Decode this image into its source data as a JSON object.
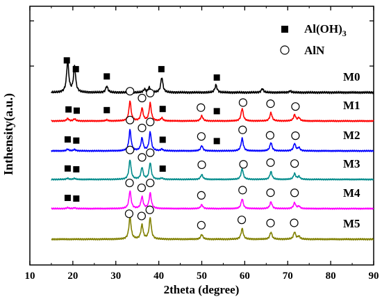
{
  "chart_data": {
    "type": "line",
    "title": "",
    "xlabel": "2theta (degree)",
    "ylabel": "Inthensity(a.u.)",
    "xlim": [
      10,
      90
    ],
    "xticks": [
      "10",
      "20",
      "30",
      "40",
      "50",
      "60",
      "70",
      "80",
      "90"
    ],
    "legend": {
      "placement": "top-right",
      "entries": [
        {
          "marker": "filled-square",
          "label": "Al(OH)",
          "subscript": "3"
        },
        {
          "marker": "open-circle",
          "label": "AlN"
        }
      ]
    },
    "series": [
      {
        "name": "M0",
        "color": "#000000",
        "peaks": [
          [
            18.8,
            1.0
          ],
          [
            20.4,
            0.82
          ],
          [
            27.9,
            0.2
          ],
          [
            36.7,
            0.1
          ],
          [
            37.8,
            0.16
          ],
          [
            40.7,
            0.48
          ],
          [
            53.3,
            0.24
          ],
          [
            64.1,
            0.12
          ],
          [
            70.6,
            0.05
          ]
        ],
        "markers": [
          {
            "shape": "square",
            "x": 18.6
          },
          {
            "shape": "square",
            "x": 20.7
          },
          {
            "shape": "square",
            "x": 27.9
          },
          {
            "shape": "square",
            "x": 40.6
          },
          {
            "shape": "square",
            "x": 53.5
          }
        ]
      },
      {
        "name": "M1",
        "color": "#ff0000",
        "peaks": [
          [
            18.8,
            0.12
          ],
          [
            20.4,
            0.1
          ],
          [
            27.9,
            0.05
          ],
          [
            33.3,
            0.95
          ],
          [
            36.1,
            0.6
          ],
          [
            38.0,
            0.85
          ],
          [
            40.7,
            0.14
          ],
          [
            50.0,
            0.25
          ],
          [
            59.4,
            0.6
          ],
          [
            66.1,
            0.4
          ],
          [
            71.6,
            0.3
          ],
          [
            72.6,
            0.15
          ]
        ],
        "markers": [
          {
            "shape": "square",
            "x": 19.0
          },
          {
            "shape": "square",
            "x": 20.9
          },
          {
            "shape": "square",
            "x": 27.9
          },
          {
            "shape": "circle",
            "x": 33.3
          },
          {
            "shape": "circle",
            "x": 36.1
          },
          {
            "shape": "circle",
            "x": 38.0
          },
          {
            "shape": "square",
            "x": 40.9
          },
          {
            "shape": "circle",
            "x": 49.8
          },
          {
            "shape": "square",
            "x": 53.5
          },
          {
            "shape": "circle",
            "x": 59.6
          },
          {
            "shape": "circle",
            "x": 66.0
          },
          {
            "shape": "circle",
            "x": 71.8
          }
        ]
      },
      {
        "name": "M2",
        "color": "#0000ff",
        "peaks": [
          [
            18.8,
            0.08
          ],
          [
            20.4,
            0.07
          ],
          [
            33.3,
            1.0
          ],
          [
            36.1,
            0.6
          ],
          [
            38.0,
            0.9
          ],
          [
            40.7,
            0.08
          ],
          [
            50.0,
            0.25
          ],
          [
            59.4,
            0.6
          ],
          [
            66.1,
            0.4
          ],
          [
            71.6,
            0.35
          ],
          [
            72.6,
            0.15
          ]
        ],
        "markers": [
          {
            "shape": "square",
            "x": 18.8
          },
          {
            "shape": "square",
            "x": 20.8
          },
          {
            "shape": "circle",
            "x": 33.3
          },
          {
            "shape": "circle",
            "x": 36.1
          },
          {
            "shape": "circle",
            "x": 38.0
          },
          {
            "shape": "square",
            "x": 40.9
          },
          {
            "shape": "circle",
            "x": 49.9
          },
          {
            "shape": "square",
            "x": 53.5
          },
          {
            "shape": "circle",
            "x": 59.5
          },
          {
            "shape": "circle",
            "x": 65.9
          },
          {
            "shape": "circle",
            "x": 71.8
          }
        ]
      },
      {
        "name": "M3",
        "color": "#008b8b",
        "peaks": [
          [
            18.8,
            0.06
          ],
          [
            20.4,
            0.05
          ],
          [
            33.3,
            1.0
          ],
          [
            36.1,
            0.6
          ],
          [
            38.0,
            0.85
          ],
          [
            40.7,
            0.06
          ],
          [
            50.0,
            0.25
          ],
          [
            59.4,
            0.55
          ],
          [
            66.1,
            0.4
          ],
          [
            71.6,
            0.3
          ],
          [
            72.6,
            0.15
          ]
        ],
        "markers": [
          {
            "shape": "square",
            "x": 18.8
          },
          {
            "shape": "square",
            "x": 20.8
          },
          {
            "shape": "circle",
            "x": 33.3
          },
          {
            "shape": "circle",
            "x": 36.1
          },
          {
            "shape": "circle",
            "x": 38.0
          },
          {
            "shape": "square",
            "x": 40.9
          },
          {
            "shape": "circle",
            "x": 50.0
          },
          {
            "shape": "circle",
            "x": 59.7
          },
          {
            "shape": "circle",
            "x": 66.0
          },
          {
            "shape": "circle",
            "x": 71.6
          }
        ]
      },
      {
        "name": "M4",
        "color": "#ff00ff",
        "peaks": [
          [
            18.8,
            0.05
          ],
          [
            20.4,
            0.04
          ],
          [
            33.3,
            0.9
          ],
          [
            36.1,
            0.6
          ],
          [
            38.0,
            0.8
          ],
          [
            50.0,
            0.2
          ],
          [
            59.4,
            0.5
          ],
          [
            66.1,
            0.35
          ],
          [
            71.6,
            0.3
          ],
          [
            72.6,
            0.12
          ]
        ],
        "markers": [
          {
            "shape": "square",
            "x": 18.8
          },
          {
            "shape": "square",
            "x": 20.8
          },
          {
            "shape": "circle",
            "x": 33.2
          },
          {
            "shape": "circle",
            "x": 36.0
          },
          {
            "shape": "circle",
            "x": 38.0
          },
          {
            "shape": "circle",
            "x": 49.9
          },
          {
            "shape": "circle",
            "x": 59.5
          },
          {
            "shape": "circle",
            "x": 66.0
          },
          {
            "shape": "circle",
            "x": 71.6
          }
        ]
      },
      {
        "name": "M5",
        "color": "#808000",
        "peaks": [
          [
            33.3,
            0.95
          ],
          [
            36.1,
            0.6
          ],
          [
            38.0,
            0.9
          ],
          [
            50.0,
            0.2
          ],
          [
            59.4,
            0.45
          ],
          [
            66.1,
            0.3
          ],
          [
            71.6,
            0.3
          ],
          [
            72.6,
            0.12
          ]
        ],
        "markers": [
          {
            "shape": "circle",
            "x": 33.1
          },
          {
            "shape": "circle",
            "x": 36.0
          },
          {
            "shape": "circle",
            "x": 37.9
          },
          {
            "shape": "circle",
            "x": 49.9
          },
          {
            "shape": "circle",
            "x": 59.3
          },
          {
            "shape": "circle",
            "x": 66.0
          },
          {
            "shape": "circle",
            "x": 71.5
          }
        ]
      }
    ]
  }
}
